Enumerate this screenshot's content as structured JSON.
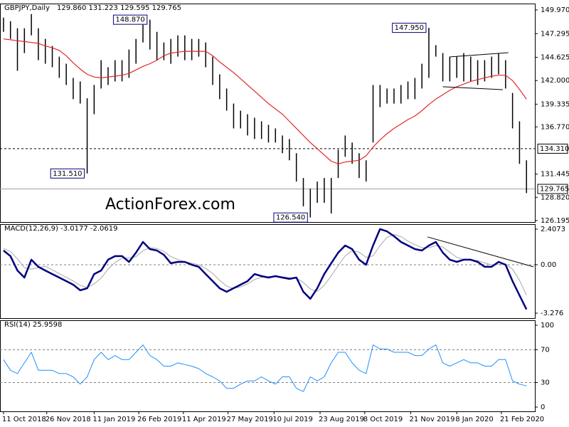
{
  "chart_data": [
    {
      "type": "ohlc",
      "title": "GBPJPY,Daily",
      "subtitle": "129.860 131.223 129.595 129.765",
      "watermark": "ActionForex.com",
      "xlim": [
        -2.5,
        381
      ],
      "ylim": [
        126.03,
        150.69
      ],
      "yticks": [
        {
          "value": 149.97,
          "label": "149.970"
        },
        147.295,
        144.625,
        {
          "value": 142,
          "label": "142.000"
        },
        139.335,
        {
          "value": 136.77,
          "label": "136.770"
        },
        131.445,
        {
          "value": 128.82,
          "label": "128.820"
        },
        126.195
      ],
      "x": [
        0,
        5,
        10,
        15,
        20,
        25,
        30,
        35,
        40,
        45,
        50,
        55,
        60,
        65,
        70,
        75,
        80,
        85,
        90,
        95,
        100,
        105,
        110,
        115,
        120,
        125,
        130,
        135,
        140,
        145,
        150,
        155,
        160,
        165,
        170,
        175,
        180,
        185,
        190,
        195,
        200,
        205,
        210,
        215,
        220,
        225,
        230,
        235,
        240,
        245,
        250,
        255,
        260,
        265,
        270,
        275,
        280,
        285,
        290,
        295,
        300,
        305,
        310,
        315,
        320,
        325,
        330,
        335,
        340,
        345,
        350,
        355,
        360,
        365,
        370,
        375
      ],
      "series": [
        {
          "kind": "bars",
          "color": "#000000",
          "high": [
            149.1,
            148.7,
            147.9,
            147.9,
            149.5,
            147.9,
            146.7,
            145.9,
            144.7,
            143.9,
            142.3,
            141.9,
            140.0,
            141.5,
            144.3,
            143.5,
            144.3,
            144.3,
            145.5,
            146.7,
            148.3,
            148.87,
            147.5,
            146.3,
            146.7,
            147.1,
            147.1,
            146.7,
            146.7,
            146.3,
            144.7,
            142.7,
            141.1,
            139.4,
            138.6,
            138.2,
            137.8,
            137.4,
            137.0,
            136.6,
            135.8,
            135.4,
            133.8,
            131.0,
            129.8,
            130.6,
            131.0,
            131.0,
            134.2,
            135.8,
            135.0,
            133.8,
            133.0,
            141.5,
            141.5,
            141.1,
            141.1,
            141.5,
            141.9,
            142.3,
            143.9,
            147.95,
            146.0,
            145.1,
            144.7,
            144.7,
            145.1,
            144.7,
            144.3,
            144.3,
            144.7,
            145.1,
            144.3,
            140.6,
            137.4,
            133.0
          ],
          "low": [
            147.5,
            146.7,
            143.1,
            145.1,
            147.1,
            144.3,
            143.9,
            143.5,
            142.3,
            141.5,
            139.9,
            139.4,
            131.51,
            138.2,
            141.1,
            141.5,
            141.9,
            141.9,
            142.3,
            143.9,
            146.3,
            145.5,
            144.3,
            144.3,
            143.9,
            144.7,
            144.3,
            144.3,
            144.7,
            143.5,
            141.5,
            139.9,
            138.6,
            136.6,
            136.6,
            135.8,
            135.4,
            135.4,
            135.0,
            135.0,
            133.8,
            133.0,
            130.6,
            127.8,
            126.54,
            128.2,
            128.2,
            127.0,
            131.0,
            133.4,
            132.6,
            131.0,
            130.6,
            135.0,
            139.0,
            139.4,
            139.4,
            139.4,
            139.9,
            139.9,
            141.1,
            142.3,
            144.7,
            141.9,
            141.9,
            142.3,
            141.9,
            141.9,
            141.5,
            141.9,
            142.3,
            142.7,
            141.1,
            136.6,
            132.6,
            129.3
          ]
        },
        {
          "kind": "line",
          "color": "#e3262a",
          "width": 1.2,
          "values": [
            146.7,
            146.6,
            146.5,
            146.4,
            146.3,
            146.2,
            145.9,
            145.7,
            145.4,
            144.8,
            144.0,
            143.3,
            142.7,
            142.4,
            142.3,
            142.4,
            142.5,
            142.6,
            142.8,
            143.2,
            143.6,
            143.9,
            144.3,
            144.8,
            145.1,
            145.2,
            145.3,
            145.3,
            145.3,
            145.3,
            144.8,
            144.1,
            143.5,
            142.9,
            142.2,
            141.5,
            140.8,
            140.1,
            139.4,
            138.8,
            138.2,
            137.4,
            136.6,
            135.8,
            135.0,
            134.3,
            133.6,
            132.9,
            132.6,
            132.8,
            132.9,
            133.0,
            133.5,
            134.5,
            135.3,
            136.0,
            136.6,
            137.1,
            137.6,
            138.0,
            138.6,
            139.3,
            139.9,
            140.4,
            140.9,
            141.3,
            141.6,
            141.9,
            142.1,
            142.3,
            142.5,
            142.6,
            142.6,
            142.0,
            141.0,
            139.9
          ]
        }
      ],
      "levels": [
        {
          "value": 134.31,
          "label": "134.310",
          "color": "#000000",
          "dash": true
        },
        {
          "value": 129.765,
          "label": "129.765",
          "color": "#a0a0a0",
          "dash": false
        }
      ],
      "annotations": [
        {
          "x": 60,
          "value": 131.51,
          "label": "131.510"
        },
        {
          "x": 220,
          "value": 126.54,
          "label": "126.540"
        },
        {
          "x": 105,
          "value": 148.87,
          "label": "148.870"
        },
        {
          "x": 305,
          "value": 147.95,
          "label": "147.950"
        }
      ],
      "trendlines": [
        {
          "x": [
            320,
            362
          ],
          "y": [
            144.67,
            145.15
          ]
        },
        {
          "x": [
            315,
            358
          ],
          "y": [
            141.3,
            140.97
          ]
        }
      ]
    },
    {
      "type": "line",
      "title": "MACD(12,26,9) -3.0177 -2.0619",
      "xlim": [
        -2.5,
        381
      ],
      "ylim": [
        -3.613,
        2.744
      ],
      "yticks": [
        2.4073,
        {
          "value": 0,
          "label": "0.00"
        },
        -3.276
      ],
      "x": [
        0,
        5,
        10,
        15,
        20,
        25,
        30,
        35,
        40,
        45,
        50,
        55,
        60,
        65,
        70,
        75,
        80,
        85,
        90,
        95,
        100,
        105,
        110,
        115,
        120,
        125,
        130,
        135,
        140,
        145,
        150,
        155,
        160,
        165,
        170,
        175,
        180,
        185,
        190,
        195,
        200,
        205,
        210,
        215,
        220,
        225,
        230,
        235,
        240,
        245,
        250,
        255,
        260,
        265,
        270,
        275,
        280,
        285,
        290,
        295,
        300,
        305,
        310,
        315,
        320,
        325,
        330,
        335,
        340,
        345,
        350,
        355,
        360,
        365,
        370,
        375
      ],
      "series": [
        {
          "kind": "line",
          "color": "#a8a8a8",
          "width": 1,
          "values": [
            1.1,
            0.9,
            0.4,
            -0.2,
            -0.3,
            -0.2,
            -0.1,
            -0.35,
            -0.6,
            -0.85,
            -1.1,
            -1.4,
            -1.55,
            -1.3,
            -0.9,
            -0.3,
            0.15,
            0.45,
            0.45,
            0.55,
            0.95,
            1.15,
            1.1,
            0.9,
            0.55,
            0.35,
            0.2,
            0.1,
            0.0,
            -0.25,
            -0.6,
            -1.05,
            -1.45,
            -1.6,
            -1.5,
            -1.3,
            -1.0,
            -0.85,
            -0.8,
            -0.8,
            -0.82,
            -0.88,
            -0.9,
            -1.2,
            -1.65,
            -1.8,
            -1.4,
            -0.75,
            -0.05,
            0.6,
            0.95,
            0.85,
            0.5,
            0.6,
            1.3,
            1.85,
            2.05,
            1.9,
            1.6,
            1.35,
            1.15,
            1.15,
            1.3,
            1.2,
            0.85,
            0.5,
            0.35,
            0.3,
            0.28,
            0.12,
            0.0,
            0.02,
            0.05,
            -0.3,
            -1.05,
            -2.06
          ]
        },
        {
          "kind": "line",
          "color": "#000080",
          "width": 2.5,
          "values": [
            0.96,
            0.58,
            -0.39,
            -0.87,
            0.34,
            -0.14,
            -0.39,
            -0.63,
            -0.87,
            -1.11,
            -1.35,
            -1.73,
            -1.59,
            -0.63,
            -0.39,
            0.34,
            0.58,
            0.58,
            0.19,
            0.82,
            1.54,
            1.06,
            0.96,
            0.67,
            0.1,
            0.19,
            0.19,
            0.0,
            -0.14,
            -0.63,
            -1.11,
            -1.59,
            -1.83,
            -1.59,
            -1.35,
            -1.11,
            -0.63,
            -0.77,
            -0.87,
            -0.77,
            -0.87,
            -0.96,
            -0.87,
            -1.83,
            -2.31,
            -1.59,
            -0.63,
            0.1,
            0.82,
            1.3,
            1.06,
            0.34,
            0.0,
            1.3,
            2.41,
            2.26,
            1.93,
            1.54,
            1.3,
            1.06,
            0.96,
            1.3,
            1.54,
            0.82,
            0.34,
            0.19,
            0.34,
            0.34,
            0.19,
            -0.14,
            -0.14,
            0.19,
            0.0,
            -1.11,
            -2.07,
            -3.02
          ]
        }
      ],
      "levels": [
        {
          "value": 0,
          "color": "#808080",
          "dash": true
        }
      ],
      "trendlines": [
        {
          "x": [
            304,
            380
          ],
          "y": [
            1.88,
            -0.14
          ]
        }
      ]
    },
    {
      "type": "line",
      "title": "RSI(14) 25.9598",
      "xlim": [
        -2.5,
        381
      ],
      "ylim": [
        -5.2,
        106.1
      ],
      "yticks": [
        100,
        70,
        30,
        0
      ],
      "xticks": [
        {
          "value": 0,
          "label": "11 Oct 2018"
        },
        {
          "value": 31,
          "label": "26 Nov 2018"
        },
        {
          "value": 65,
          "label": "11 Jan 2019"
        },
        {
          "value": 97,
          "label": "26 Feb 2019"
        },
        {
          "value": 129,
          "label": "11 Apr 2019"
        },
        {
          "value": 161,
          "label": "27 May 2019"
        },
        {
          "value": 194,
          "label": "10 Jul 2019"
        },
        {
          "value": 227,
          "label": "23 Aug 2019"
        },
        {
          "value": 259,
          "label": "8 Oct 2019"
        },
        {
          "value": 292,
          "label": "21 Nov 2019"
        },
        {
          "value": 325,
          "label": "8 Jan 2020"
        },
        {
          "value": 357,
          "label": "21 Feb 2020"
        }
      ],
      "x": [
        0,
        5,
        10,
        15,
        20,
        25,
        30,
        35,
        40,
        45,
        50,
        55,
        60,
        65,
        70,
        75,
        80,
        85,
        90,
        95,
        100,
        105,
        110,
        115,
        120,
        125,
        130,
        135,
        140,
        145,
        150,
        155,
        160,
        165,
        170,
        175,
        180,
        185,
        190,
        195,
        200,
        205,
        210,
        215,
        220,
        225,
        230,
        235,
        240,
        245,
        250,
        255,
        260,
        265,
        270,
        275,
        280,
        285,
        290,
        295,
        300,
        305,
        310,
        315,
        320,
        325,
        330,
        335,
        340,
        345,
        350,
        355,
        360,
        365,
        370,
        375
      ],
      "series": [
        {
          "kind": "line",
          "color": "#1e90ff",
          "width": 1,
          "values": [
            58,
            45,
            41,
            54,
            67,
            45,
            45,
            45,
            41,
            41,
            37,
            28,
            37,
            58,
            67,
            58,
            63,
            58,
            58,
            67,
            76,
            63,
            58,
            50,
            50,
            54,
            52,
            50,
            47,
            41,
            37,
            32,
            23,
            23,
            28,
            32,
            32,
            37,
            32,
            28,
            37,
            37,
            23,
            19,
            37,
            32,
            37,
            54,
            67,
            67,
            54,
            45,
            41,
            76,
            71,
            71,
            67,
            67,
            67,
            63,
            63,
            71,
            76,
            54,
            50,
            54,
            58,
            54,
            54,
            50,
            50,
            58,
            58,
            32,
            28,
            25.96
          ]
        }
      ],
      "levels": [
        {
          "value": 70,
          "color": "#808080",
          "dash": true
        },
        {
          "value": 30,
          "color": "#808080",
          "dash": true
        }
      ]
    }
  ]
}
